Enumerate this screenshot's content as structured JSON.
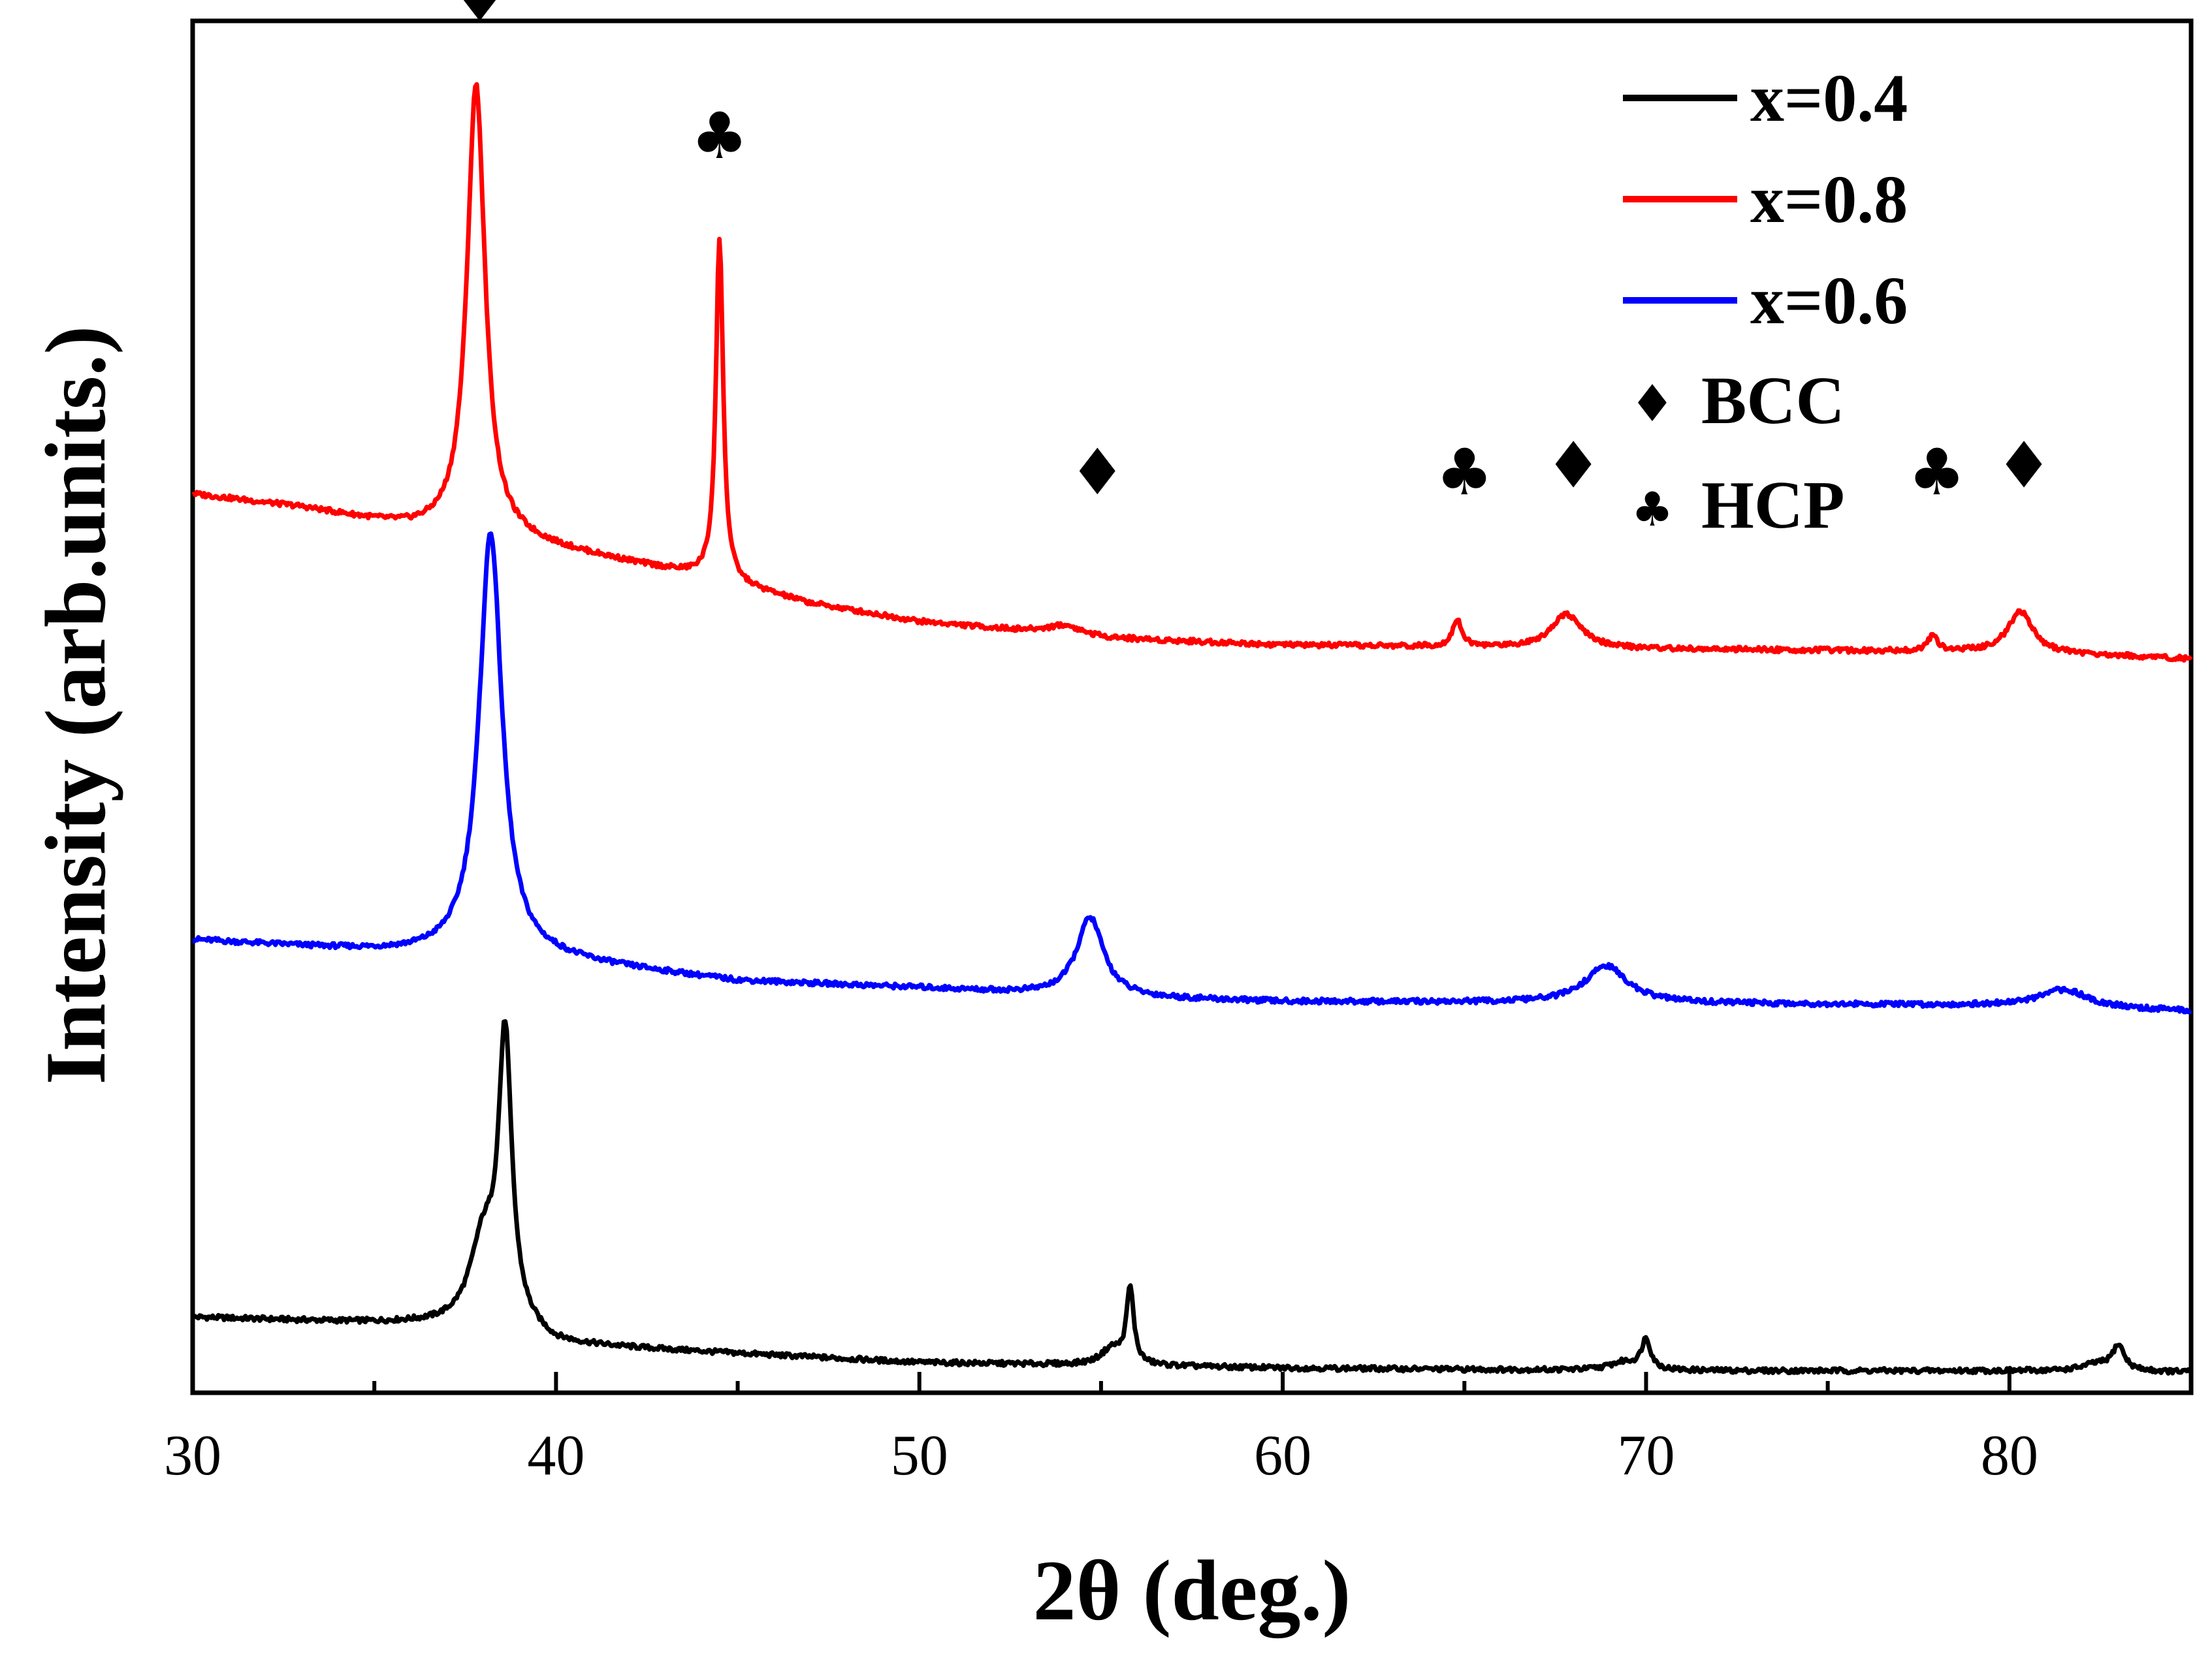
{
  "chart_data": {
    "type": "line",
    "xlabel": "2θ  (deg.)",
    "ylabel": "Intensity (arb.units.)",
    "xlim": [
      30,
      85
    ],
    "ylim": [
      0,
      10
    ],
    "xticks": [
      30,
      40,
      50,
      60,
      70,
      80
    ],
    "xtick_labels": [
      "30",
      "40",
      "50",
      "60",
      "70",
      "80"
    ],
    "yticks": [],
    "grid": false,
    "legend_position": "top-right",
    "series": [
      {
        "name": "x=0.4",
        "color": "#000000",
        "baseline": [
          [
            30,
            0.55
          ],
          [
            36,
            0.5
          ],
          [
            39,
            0.45
          ],
          [
            40,
            0.35
          ],
          [
            50,
            0.22
          ],
          [
            55,
            0.2
          ],
          [
            60,
            0.18
          ],
          [
            70,
            0.16
          ],
          [
            80,
            0.16
          ],
          [
            85,
            0.15
          ]
        ],
        "peaks": [
          {
            "x": 38.6,
            "height": 2.05,
            "width": 0.22
          },
          {
            "x": 38.0,
            "height": 0.6,
            "width": 0.45
          },
          {
            "x": 55.8,
            "height": 0.55,
            "width": 0.12
          },
          {
            "x": 55.3,
            "height": 0.12,
            "width": 0.35
          },
          {
            "x": 70.0,
            "height": 0.22,
            "width": 0.15
          },
          {
            "x": 69.4,
            "height": 0.06,
            "width": 0.5
          },
          {
            "x": 83.0,
            "height": 0.18,
            "width": 0.2
          },
          {
            "x": 82.4,
            "height": 0.05,
            "width": 0.5
          }
        ]
      },
      {
        "name": "x=0.6",
        "color": "#0000ff",
        "baseline": [
          [
            30,
            3.3
          ],
          [
            36,
            3.2
          ],
          [
            40,
            3.15
          ],
          [
            45,
            3.0
          ],
          [
            50,
            2.95
          ],
          [
            55,
            2.88
          ],
          [
            60,
            2.85
          ],
          [
            70,
            2.84
          ],
          [
            80,
            2.82
          ],
          [
            85,
            2.78
          ]
        ],
        "peaks": [
          {
            "x": 38.2,
            "height": 3.1,
            "width": 0.38
          },
          {
            "x": 54.7,
            "height": 0.58,
            "width": 0.45
          },
          {
            "x": 68.9,
            "height": 0.27,
            "width": 0.7
          },
          {
            "x": 81.5,
            "height": 0.13,
            "width": 0.8
          }
        ]
      },
      {
        "name": "x=0.8",
        "color": "#ff0000",
        "baseline": [
          [
            30,
            6.55
          ],
          [
            33,
            6.45
          ],
          [
            36,
            6.3
          ],
          [
            39,
            6.2
          ],
          [
            44,
            5.95
          ],
          [
            47,
            5.75
          ],
          [
            50,
            5.62
          ],
          [
            55,
            5.5
          ],
          [
            60,
            5.45
          ],
          [
            70,
            5.42
          ],
          [
            80,
            5.4
          ],
          [
            85,
            5.35
          ]
        ],
        "peaks": [
          {
            "x": 37.8,
            "height": 3.3,
            "width": 0.3
          },
          {
            "x": 44.5,
            "height": 2.5,
            "width": 0.12
          },
          {
            "x": 54.0,
            "height": 0.07,
            "width": 0.6
          },
          {
            "x": 64.8,
            "height": 0.2,
            "width": 0.15
          },
          {
            "x": 67.8,
            "height": 0.25,
            "width": 0.5
          },
          {
            "x": 77.9,
            "height": 0.12,
            "width": 0.15
          },
          {
            "x": 80.3,
            "height": 0.3,
            "width": 0.4
          }
        ]
      }
    ],
    "phase_markers": [
      {
        "phase": "BCC",
        "symbol": "♦",
        "x": 37.9,
        "level": 10.0
      },
      {
        "phase": "HCP",
        "symbol": "♣",
        "x": 44.5,
        "level": 9.0
      },
      {
        "phase": "BCC",
        "symbol": "♦",
        "x": 54.9,
        "level": 6.55
      },
      {
        "phase": "HCP",
        "symbol": "♣",
        "x": 65.0,
        "level": 6.55
      },
      {
        "phase": "BCC",
        "symbol": "♦",
        "x": 68.0,
        "level": 6.6
      },
      {
        "phase": "HCP",
        "symbol": "♣",
        "x": 78.0,
        "level": 6.55
      },
      {
        "phase": "BCC",
        "symbol": "♦",
        "x": 80.4,
        "level": 6.6
      }
    ],
    "legend": {
      "series": [
        {
          "label": "x=0.4",
          "color": "#000000"
        },
        {
          "label": "x=0.8",
          "color": "#ff0000"
        },
        {
          "label": "x=0.6",
          "color": "#0000ff"
        }
      ],
      "markers": [
        {
          "symbol": "♦",
          "label": "BCC"
        },
        {
          "symbol": "♣",
          "label": "HCP"
        }
      ]
    }
  }
}
